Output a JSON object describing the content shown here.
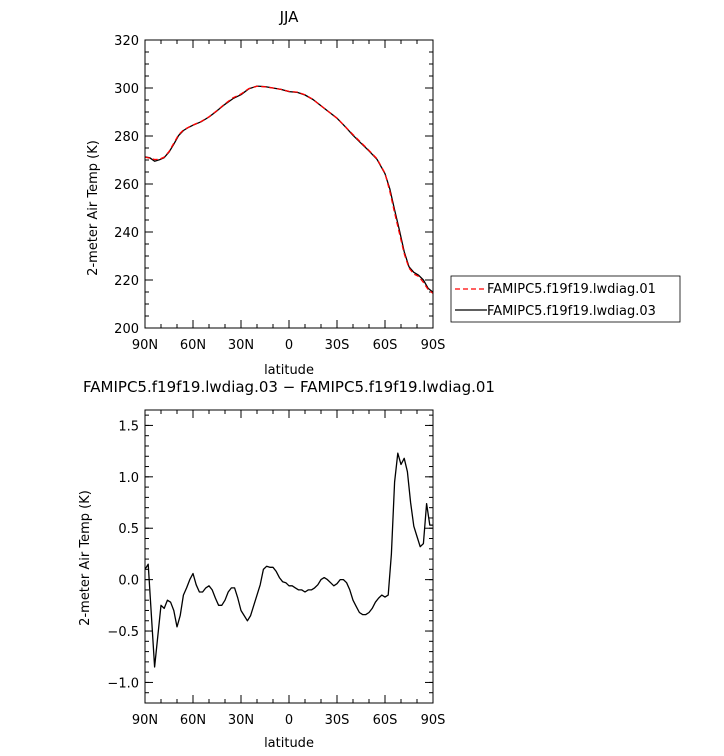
{
  "chart_data": [
    {
      "type": "line",
      "title": "JJA",
      "xlabel": "latitude",
      "ylabel": "2-meter Air Temp (K)",
      "xlim": [
        90,
        -90
      ],
      "ylim": [
        200,
        320
      ],
      "xticks": [
        90,
        60,
        30,
        0,
        -30,
        -60,
        -90
      ],
      "xtick_labels": [
        "90N",
        "60N",
        "30N",
        "0",
        "30S",
        "60S",
        "90S"
      ],
      "yticks": [
        200,
        220,
        240,
        260,
        280,
        300,
        320
      ],
      "ytick_labels": [
        "200",
        "220",
        "240",
        "260",
        "280",
        "300",
        "320"
      ],
      "legend": "right",
      "series": [
        {
          "name": "FAMIPC5.f19f19.lwdiag.01",
          "color": "#ff0000",
          "style": "dashed",
          "x": [
            90,
            87,
            84,
            81,
            78,
            75,
            72,
            69,
            66,
            63,
            60,
            55,
            50,
            45,
            40,
            35,
            30,
            25,
            20,
            15,
            10,
            5,
            0,
            -5,
            -10,
            -15,
            -20,
            -25,
            -30,
            -35,
            -40,
            -45,
            -50,
            -55,
            -60,
            -63,
            -66,
            -69,
            -72,
            -75,
            -78,
            -81,
            -84,
            -87,
            -90
          ],
          "y": [
            271.2,
            270.8,
            270.2,
            270.3,
            271.2,
            273.5,
            277.0,
            280.5,
            282.5,
            283.6,
            284.6,
            286.0,
            288.0,
            290.6,
            293.4,
            295.9,
            297.5,
            299.8,
            300.7,
            300.5,
            300.0,
            299.4,
            298.6,
            298.3,
            297.2,
            295.2,
            292.6,
            290.0,
            287.4,
            284.0,
            280.6,
            277.3,
            274.0,
            270.5,
            264.5,
            257.0,
            248.0,
            239.5,
            231.0,
            225.0,
            222.5,
            221.5,
            219.0,
            216.0,
            214.4
          ]
        },
        {
          "name": "FAMIPC5.f19f19.lwdiag.03",
          "color": "#000000",
          "style": "solid",
          "x": [
            90,
            87,
            84,
            81,
            78,
            75,
            72,
            69,
            66,
            63,
            60,
            55,
            50,
            45,
            40,
            35,
            30,
            25,
            20,
            15,
            10,
            5,
            0,
            -5,
            -10,
            -15,
            -20,
            -25,
            -30,
            -35,
            -40,
            -45,
            -50,
            -55,
            -60,
            -63,
            -66,
            -69,
            -72,
            -75,
            -78,
            -81,
            -84,
            -87,
            -90
          ],
          "y": [
            271.3,
            270.9,
            269.5,
            270.1,
            271.0,
            273.3,
            276.6,
            280.2,
            282.3,
            283.5,
            284.5,
            285.9,
            287.9,
            290.5,
            293.2,
            295.6,
            297.2,
            299.7,
            300.8,
            300.6,
            300.0,
            299.4,
            298.5,
            298.2,
            297.1,
            295.2,
            292.6,
            290.0,
            287.4,
            284.0,
            280.3,
            277.0,
            273.8,
            270.3,
            264.3,
            258.0,
            249.2,
            240.8,
            231.8,
            225.5,
            223.2,
            222.0,
            220.0,
            216.5,
            214.9
          ]
        }
      ]
    },
    {
      "type": "line",
      "title": "FAMIPC5.f19f19.lwdiag.03 − FAMIPC5.f19f19.lwdiag.01",
      "xlabel": "latitude",
      "ylabel": "2-meter Air Temp (K)",
      "xlim": [
        90,
        -90
      ],
      "ylim": [
        -1.2,
        1.65
      ],
      "xticks": [
        90,
        60,
        30,
        0,
        -30,
        -60,
        -90
      ],
      "xtick_labels": [
        "90N",
        "60N",
        "30N",
        "0",
        "30S",
        "60S",
        "90S"
      ],
      "yticks": [
        -1.0,
        -0.5,
        0.0,
        0.5,
        1.0,
        1.5
      ],
      "ytick_labels": [
        "−1.0",
        "−0.5",
        "0.0",
        "0.5",
        "1.0",
        "1.5"
      ],
      "series": [
        {
          "color": "#000000",
          "style": "solid",
          "x": [
            90,
            88,
            86,
            84,
            82,
            80,
            78,
            76,
            74,
            72,
            70,
            68,
            66,
            64,
            62,
            60,
            58,
            56,
            54,
            52,
            50,
            48,
            46,
            44,
            42,
            40,
            38,
            36,
            34,
            32,
            30,
            28,
            26,
            24,
            22,
            20,
            18,
            16,
            14,
            12,
            10,
            8,
            6,
            4,
            2,
            0,
            -2,
            -4,
            -6,
            -8,
            -10,
            -12,
            -14,
            -16,
            -18,
            -20,
            -22,
            -24,
            -26,
            -28,
            -30,
            -32,
            -34,
            -36,
            -38,
            -40,
            -42,
            -44,
            -46,
            -48,
            -50,
            -52,
            -54,
            -56,
            -58,
            -60,
            -62,
            -64,
            -66,
            -68,
            -70,
            -72,
            -74,
            -76,
            -78,
            -80,
            -82,
            -84,
            -86,
            -88,
            -90
          ],
          "y": [
            0.1,
            0.15,
            -0.35,
            -0.85,
            -0.55,
            -0.25,
            -0.28,
            -0.2,
            -0.22,
            -0.3,
            -0.46,
            -0.35,
            -0.15,
            -0.08,
            0.0,
            0.06,
            -0.05,
            -0.12,
            -0.12,
            -0.08,
            -0.06,
            -0.1,
            -0.18,
            -0.25,
            -0.25,
            -0.2,
            -0.12,
            -0.08,
            -0.08,
            -0.18,
            -0.3,
            -0.35,
            -0.4,
            -0.35,
            -0.25,
            -0.15,
            -0.05,
            0.1,
            0.13,
            0.12,
            0.12,
            0.08,
            0.02,
            -0.02,
            -0.03,
            -0.06,
            -0.06,
            -0.08,
            -0.1,
            -0.1,
            -0.12,
            -0.1,
            -0.1,
            -0.08,
            -0.05,
            0.0,
            0.02,
            0.0,
            -0.03,
            -0.06,
            -0.04,
            0.0,
            0.0,
            -0.03,
            -0.1,
            -0.2,
            -0.26,
            -0.32,
            -0.34,
            -0.34,
            -0.32,
            -0.28,
            -0.22,
            -0.18,
            -0.15,
            -0.17,
            -0.15,
            0.25,
            0.95,
            1.23,
            1.12,
            1.18,
            1.05,
            0.75,
            0.52,
            0.42,
            0.32,
            0.35,
            0.74,
            0.53,
            0.53
          ]
        }
      ]
    }
  ]
}
